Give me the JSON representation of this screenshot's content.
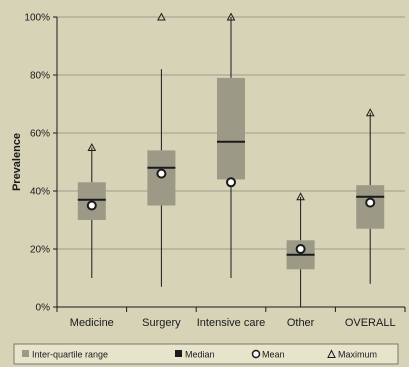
{
  "chart_data": {
    "type": "boxplot",
    "ylabel": "Prevalence",
    "xlabel": "",
    "title": "",
    "ylim": [
      0,
      100
    ],
    "yticks": [
      "0%",
      "20%",
      "40%",
      "60%",
      "80%",
      "100%"
    ],
    "categories": [
      "Medicine",
      "Surgery",
      "Intensive care",
      "Other",
      "OVERALL"
    ],
    "boxes": [
      {
        "min": 10,
        "q1": 30,
        "median": 37,
        "q3": 43,
        "max": 55,
        "mean": 35
      },
      {
        "min": 7,
        "q1": 35,
        "median": 48,
        "q3": 54,
        "max": 100,
        "whisker_top": 82,
        "mean": 46
      },
      {
        "min": 10,
        "q1": 44,
        "median": 57,
        "q3": 79,
        "max": 100,
        "mean": 43
      },
      {
        "min": 0,
        "q1": 13,
        "median": 18,
        "q3": 23,
        "max": 38,
        "mean": 20
      },
      {
        "min": 8,
        "q1": 27,
        "median": 38,
        "q3": 42,
        "max": 67,
        "mean": 36
      }
    ],
    "legend": {
      "position": "bottom",
      "items": [
        "Inter-quartile range",
        "Median",
        "Mean",
        "Maximum"
      ]
    },
    "grid": true,
    "colors": {
      "background": "#d6d3b7",
      "box": "#9c9a86",
      "grid": "#8a8a7a",
      "line": "#1a1a1a",
      "mean_fill": "#ffffff"
    }
  }
}
